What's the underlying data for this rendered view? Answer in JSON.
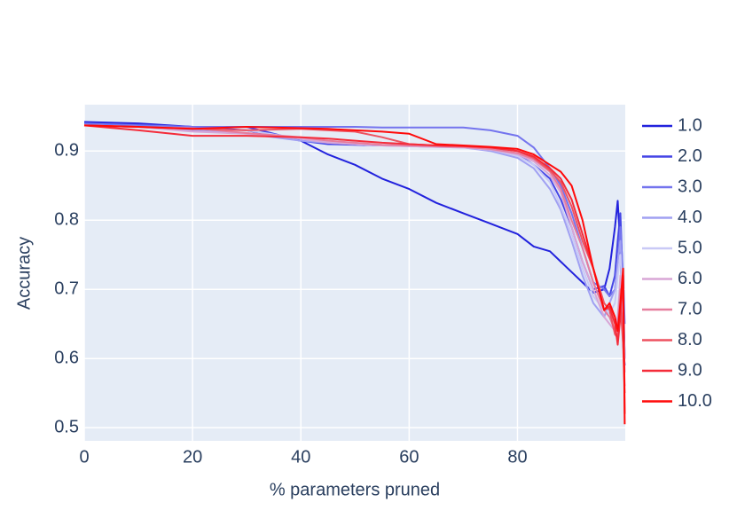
{
  "chart_data": {
    "type": "line",
    "xlabel": "% parameters pruned",
    "ylabel": "Accuracy",
    "xlim": [
      0,
      99.9
    ],
    "ylim": [
      0.481,
      0.967
    ],
    "xticks": [
      0,
      20,
      40,
      60,
      80
    ],
    "yticks": [
      0.5,
      0.6,
      0.7,
      0.8,
      0.9
    ],
    "grid": true,
    "legend": "right",
    "x": [
      0,
      10,
      20,
      30,
      40,
      45,
      50,
      55,
      60,
      65,
      70,
      75,
      80,
      83,
      86,
      88,
      90,
      92,
      94,
      96,
      97,
      98,
      98.5,
      99,
      99.5,
      99.8
    ],
    "series": [
      {
        "name": "1.0",
        "color": "#2222dd",
        "values": [
          0.942,
          0.94,
          0.935,
          0.93,
          0.915,
          0.895,
          0.88,
          0.86,
          0.845,
          0.825,
          0.81,
          0.795,
          0.78,
          0.762,
          0.755,
          0.74,
          0.725,
          0.71,
          0.695,
          0.7,
          0.73,
          0.79,
          0.828,
          0.76,
          0.62,
          0.59
        ]
      },
      {
        "name": "2.0",
        "color": "#4444e6",
        "values": [
          0.94,
          0.938,
          0.935,
          0.935,
          0.915,
          0.91,
          0.909,
          0.908,
          0.908,
          0.907,
          0.907,
          0.905,
          0.895,
          0.88,
          0.86,
          0.83,
          0.79,
          0.74,
          0.7,
          0.705,
          0.69,
          0.72,
          0.77,
          0.81,
          0.7,
          0.6
        ]
      },
      {
        "name": "3.0",
        "color": "#7474ee",
        "values": [
          0.94,
          0.937,
          0.935,
          0.935,
          0.935,
          0.935,
          0.935,
          0.934,
          0.934,
          0.934,
          0.934,
          0.93,
          0.922,
          0.905,
          0.875,
          0.85,
          0.81,
          0.76,
          0.71,
          0.7,
          0.69,
          0.7,
          0.74,
          0.79,
          0.72,
          0.65
        ]
      },
      {
        "name": "4.0",
        "color": "#a0a0f2",
        "values": [
          0.937,
          0.935,
          0.93,
          0.925,
          0.915,
          0.912,
          0.91,
          0.908,
          0.907,
          0.906,
          0.905,
          0.9,
          0.89,
          0.875,
          0.845,
          0.815,
          0.77,
          0.72,
          0.68,
          0.66,
          0.68,
          0.7,
          0.74,
          0.77,
          0.68,
          0.6
        ]
      },
      {
        "name": "5.0",
        "color": "#c9c9f6",
        "values": [
          0.937,
          0.935,
          0.932,
          0.93,
          0.918,
          0.913,
          0.91,
          0.908,
          0.907,
          0.906,
          0.905,
          0.902,
          0.893,
          0.88,
          0.855,
          0.82,
          0.78,
          0.73,
          0.69,
          0.67,
          0.665,
          0.68,
          0.72,
          0.75,
          0.66,
          0.6
        ]
      },
      {
        "name": "6.0",
        "color": "#d8a6d6",
        "values": [
          0.937,
          0.935,
          0.928,
          0.925,
          0.918,
          0.912,
          0.91,
          0.908,
          0.907,
          0.906,
          0.905,
          0.902,
          0.895,
          0.885,
          0.865,
          0.84,
          0.79,
          0.74,
          0.7,
          0.66,
          0.65,
          0.64,
          0.66,
          0.72,
          0.64,
          0.58
        ]
      },
      {
        "name": "7.0",
        "color": "#e67c9c",
        "values": [
          0.937,
          0.935,
          0.933,
          0.926,
          0.92,
          0.915,
          0.912,
          0.909,
          0.908,
          0.907,
          0.906,
          0.903,
          0.897,
          0.888,
          0.87,
          0.845,
          0.8,
          0.76,
          0.71,
          0.67,
          0.66,
          0.64,
          0.65,
          0.7,
          0.63,
          0.56
        ]
      },
      {
        "name": "8.0",
        "color": "#ee5260",
        "values": [
          0.937,
          0.935,
          0.932,
          0.93,
          0.932,
          0.93,
          0.928,
          0.92,
          0.91,
          0.908,
          0.907,
          0.905,
          0.9,
          0.89,
          0.872,
          0.855,
          0.82,
          0.77,
          0.73,
          0.68,
          0.67,
          0.635,
          0.63,
          0.68,
          0.62,
          0.55
        ]
      },
      {
        "name": "9.0",
        "color": "#f42c3a",
        "values": [
          0.937,
          0.93,
          0.922,
          0.922,
          0.92,
          0.918,
          0.915,
          0.912,
          0.91,
          0.908,
          0.907,
          0.905,
          0.9,
          0.892,
          0.875,
          0.86,
          0.83,
          0.78,
          0.73,
          0.67,
          0.675,
          0.65,
          0.62,
          0.66,
          0.72,
          0.52
        ]
      },
      {
        "name": "10.0",
        "color": "#ff0a0a",
        "values": [
          0.937,
          0.935,
          0.932,
          0.935,
          0.933,
          0.932,
          0.93,
          0.928,
          0.925,
          0.91,
          0.908,
          0.906,
          0.903,
          0.895,
          0.88,
          0.87,
          0.85,
          0.8,
          0.73,
          0.67,
          0.68,
          0.66,
          0.64,
          0.68,
          0.73,
          0.505
        ]
      }
    ]
  }
}
